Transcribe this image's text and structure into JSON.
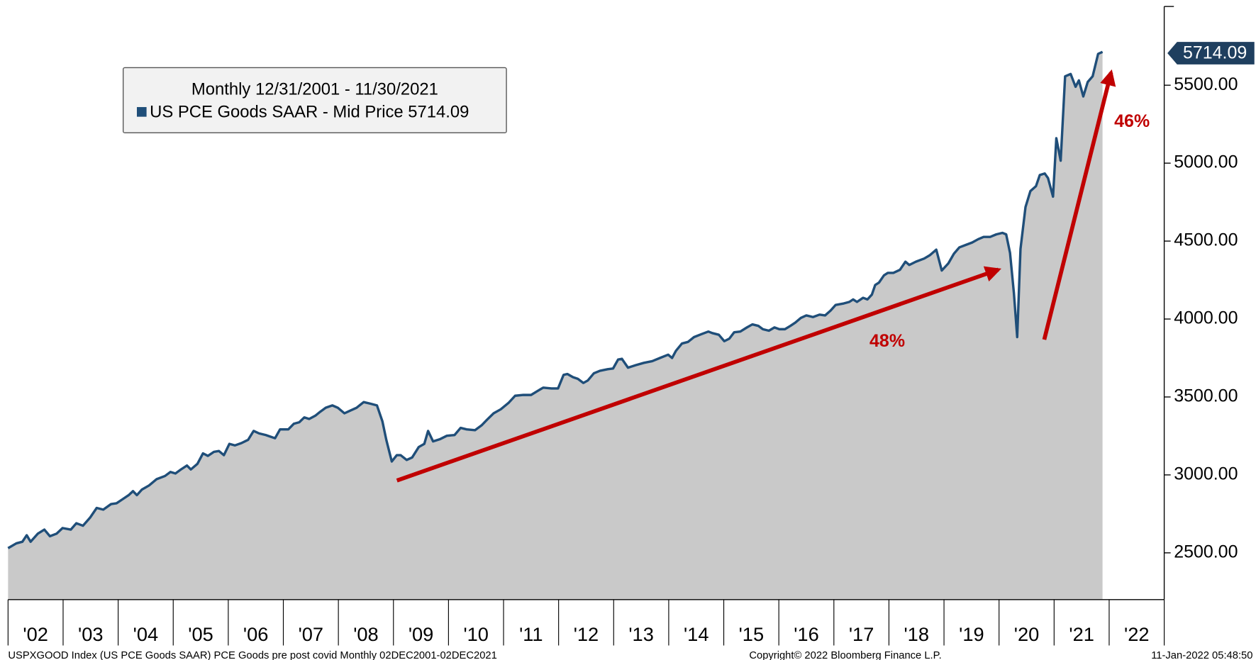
{
  "chart_data": {
    "type": "area",
    "legend_title": "Monthly 12/31/2001 - 11/30/2021",
    "series": [
      {
        "name": "US PCE Goods SAAR - Mid Price 5714.09",
        "color": "#1f4e79",
        "fill": "#c9c9c9",
        "values": [
          2530,
          2561,
          2571,
          2613,
          2571,
          2623,
          2649,
          2607,
          2623,
          2659,
          2649,
          2690,
          2674,
          2726,
          2788,
          2777,
          2813,
          2818,
          2844,
          2870,
          2896,
          2870,
          2906,
          2932,
          2973,
          2993,
          3019,
          3009,
          3035,
          3060,
          3035,
          3071,
          3138,
          3122,
          3148,
          3153,
          3127,
          3199,
          3189,
          3204,
          3225,
          3282,
          3266,
          3256,
          3235,
          3292,
          3292,
          3328,
          3338,
          3369,
          3359,
          3380,
          3405,
          3431,
          3446,
          3431,
          3395,
          3411,
          3431,
          3467,
          3457,
          3446,
          3343,
          3225,
          3086,
          3127,
          3127,
          3096,
          3112,
          3179,
          3199,
          3282,
          3215,
          3230,
          3251,
          3256,
          3302,
          3292,
          3287,
          3318,
          3354,
          3395,
          3421,
          3462,
          3508,
          3513,
          3513,
          3539,
          3560,
          3555,
          3555,
          3642,
          3647,
          3627,
          3616,
          3590,
          3606,
          3652,
          3668,
          3678,
          3683,
          3740,
          3745,
          3688,
          3704,
          3719,
          3730,
          3750,
          3771,
          3750,
          3796,
          3843,
          3853,
          3884,
          3904,
          3920,
          3910,
          3899,
          3858,
          3874,
          3915,
          3920,
          3946,
          3966,
          3956,
          3935,
          3925,
          3946,
          3935,
          3935,
          3956,
          3977,
          4007,
          4023,
          4013,
          4028,
          4023,
          4054,
          4090,
          4100,
          4110,
          4126,
          4110,
          4136,
          4126,
          4157,
          4218,
          4234,
          4280,
          4296,
          4296,
          4316,
          4368,
          4347,
          4368,
          4388,
          4409,
          4445,
          4311,
          4357,
          4419,
          4460,
          4476,
          4491,
          4512,
          4527,
          4527,
          4543,
          4553,
          4543,
          4424,
          4167,
          3884,
          4450,
          4718,
          4821,
          4852,
          4924,
          4934,
          4904,
          4785,
          5160,
          5016,
          5557,
          5572,
          5490,
          5531,
          5428,
          5521,
          5557,
          5701,
          5714.09
        ]
      }
    ],
    "x": [
      2002.0,
      2002.15,
      2002.26,
      2002.34,
      2002.41,
      2002.54,
      2002.66,
      2002.76,
      2002.88,
      2002.99,
      2003.14,
      2003.24,
      2003.36,
      2003.49,
      2003.61,
      2003.73,
      2003.87,
      2003.97,
      2004.08,
      2004.19,
      2004.27,
      2004.34,
      2004.43,
      2004.56,
      2004.7,
      2004.85,
      2004.95,
      2005.04,
      2005.14,
      2005.25,
      2005.32,
      2005.44,
      2005.54,
      2005.63,
      2005.74,
      2005.83,
      2005.92,
      2006.02,
      2006.12,
      2006.24,
      2006.36,
      2006.46,
      2006.56,
      2006.68,
      2006.85,
      2006.94,
      2007.09,
      2007.19,
      2007.29,
      2007.38,
      2007.47,
      2007.58,
      2007.67,
      2007.77,
      2007.89,
      2007.99,
      2008.11,
      2008.21,
      2008.33,
      2008.46,
      2008.58,
      2008.7,
      2008.8,
      2008.87,
      2008.97,
      2009.06,
      2009.13,
      2009.24,
      2009.34,
      2009.46,
      2009.56,
      2009.63,
      2009.72,
      2009.85,
      2009.97,
      2010.11,
      2010.22,
      2010.33,
      2010.48,
      2010.6,
      2010.7,
      2010.82,
      2010.95,
      2011.09,
      2011.21,
      2011.36,
      2011.5,
      2011.62,
      2011.72,
      2011.87,
      2011.99,
      2012.09,
      2012.16,
      2012.26,
      2012.35,
      2012.45,
      2012.53,
      2012.64,
      2012.75,
      2012.89,
      2012.99,
      2013.08,
      2013.15,
      2013.26,
      2013.4,
      2013.55,
      2013.7,
      2013.84,
      2013.99,
      2014.06,
      2014.13,
      2014.24,
      2014.35,
      2014.46,
      2014.6,
      2014.72,
      2014.79,
      2014.91,
      2015.01,
      2015.1,
      2015.19,
      2015.3,
      2015.42,
      2015.52,
      2015.63,
      2015.71,
      2015.82,
      2015.92,
      2016.01,
      2016.11,
      2016.21,
      2016.3,
      2016.4,
      2016.5,
      2016.62,
      2016.74,
      2016.84,
      2016.94,
      2017.03,
      2017.18,
      2017.28,
      2017.35,
      2017.42,
      2017.53,
      2017.61,
      2017.69,
      2017.75,
      2017.82,
      2017.91,
      2017.98,
      2018.08,
      2018.2,
      2018.3,
      2018.37,
      2018.49,
      2018.64,
      2018.74,
      2018.86,
      2018.96,
      2019.08,
      2019.18,
      2019.28,
      2019.4,
      2019.51,
      2019.62,
      2019.72,
      2019.84,
      2019.95,
      2020.06,
      2020.13,
      2020.2,
      2020.27,
      2020.33,
      2020.39,
      2020.48,
      2020.57,
      2020.67,
      2020.74,
      2020.83,
      2020.89,
      2020.98,
      2021.04,
      2021.12,
      2021.2,
      2021.3,
      2021.39,
      2021.45,
      2021.53,
      2021.61,
      2021.7,
      2021.8,
      2021.88
    ],
    "last_value_label": "5714.09",
    "xlim": [
      2002,
      2023
    ],
    "xticks": [
      {
        "value": 2002,
        "label": "'02"
      },
      {
        "value": 2003,
        "label": "'03"
      },
      {
        "value": 2004,
        "label": "'04"
      },
      {
        "value": 2005,
        "label": "'05"
      },
      {
        "value": 2006,
        "label": "'06"
      },
      {
        "value": 2007,
        "label": "'07"
      },
      {
        "value": 2008,
        "label": "'08"
      },
      {
        "value": 2009,
        "label": "'09"
      },
      {
        "value": 2010,
        "label": "'10"
      },
      {
        "value": 2011,
        "label": "'11"
      },
      {
        "value": 2012,
        "label": "'12"
      },
      {
        "value": 2013,
        "label": "'13"
      },
      {
        "value": 2014,
        "label": "'14"
      },
      {
        "value": 2015,
        "label": "'15"
      },
      {
        "value": 2016,
        "label": "'16"
      },
      {
        "value": 2017,
        "label": "'17"
      },
      {
        "value": 2018,
        "label": "'18"
      },
      {
        "value": 2019,
        "label": "'19"
      },
      {
        "value": 2020,
        "label": "'20"
      },
      {
        "value": 2021,
        "label": "'21"
      },
      {
        "value": 2022,
        "label": "'22"
      }
    ],
    "ylim": [
      2200,
      6000
    ],
    "yticks": [
      {
        "value": 2500,
        "label": "2500.00"
      },
      {
        "value": 3000,
        "label": "3000.00"
      },
      {
        "value": 3500,
        "label": "3500.00"
      },
      {
        "value": 4000,
        "label": "4000.00"
      },
      {
        "value": 4500,
        "label": "4500.00"
      },
      {
        "value": 5000,
        "label": "5000.00"
      },
      {
        "value": 5500,
        "label": "5500.00"
      }
    ],
    "annotations": [
      {
        "text": "48%"
      },
      {
        "text": "46%"
      }
    ],
    "footer": {
      "left": "USPXGOOD Index (US PCE Goods SAAR) PCE Goods pre post covid  Monthly 02DEC2001-02DEC2021",
      "center": "Copyright© 2022 Bloomberg Finance L.P.",
      "right": "11-Jan-2022 05:48:50"
    }
  }
}
